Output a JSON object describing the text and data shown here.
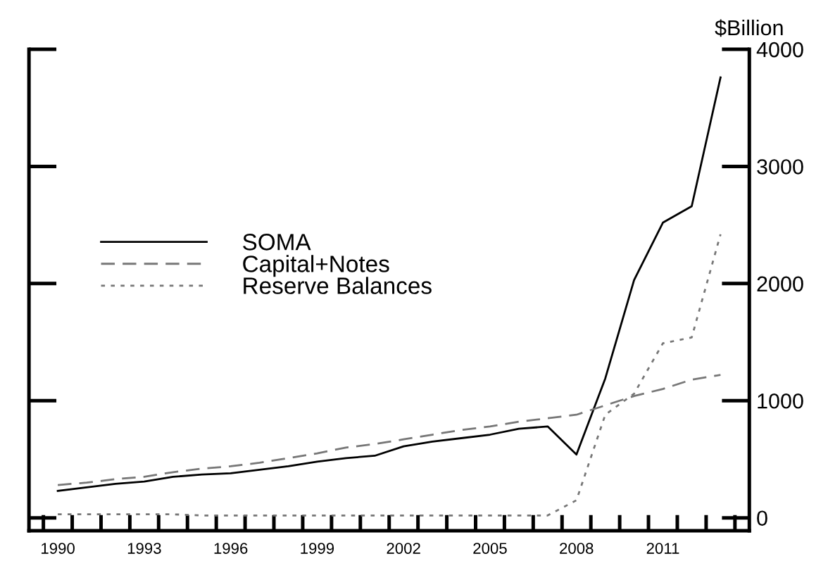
{
  "chart_data": {
    "type": "line",
    "ylabel": "$Billion",
    "x": [
      1990,
      1991,
      1992,
      1993,
      1994,
      1995,
      1996,
      1997,
      1998,
      1999,
      2000,
      2001,
      2002,
      2003,
      2004,
      2005,
      2006,
      2007,
      2008,
      2009,
      2010,
      2011,
      2012,
      2013
    ],
    "series": [
      {
        "name": "SOMA",
        "color": "#000000",
        "line_style": "solid",
        "values": [
          230,
          260,
          290,
          310,
          350,
          370,
          380,
          410,
          440,
          480,
          510,
          530,
          610,
          650,
          680,
          710,
          760,
          780,
          540,
          1190,
          2030,
          2520,
          2660,
          3760
        ]
      },
      {
        "name": "Capital+Notes",
        "color": "#777777",
        "line_style": "dashed",
        "values": [
          280,
          300,
          330,
          350,
          390,
          420,
          440,
          470,
          510,
          550,
          600,
          630,
          670,
          710,
          750,
          780,
          820,
          850,
          880,
          960,
          1040,
          1100,
          1180,
          1220
        ]
      },
      {
        "name": "Reserve Balances",
        "color": "#777777",
        "line_style": "dotted",
        "values": [
          30,
          30,
          30,
          30,
          30,
          20,
          20,
          20,
          20,
          20,
          20,
          20,
          20,
          20,
          20,
          20,
          20,
          20,
          150,
          880,
          1060,
          1490,
          1540,
          2420
        ]
      }
    ],
    "xlim": [
      1989,
      2014
    ],
    "xticks": [
      {
        "value": 1989.5,
        "label": null
      },
      {
        "value": 1990,
        "label": "1990"
      },
      {
        "value": 1990.5,
        "label": null
      },
      {
        "value": 1991.5,
        "label": null
      },
      {
        "value": 1992.5,
        "label": null
      },
      {
        "value": 1993,
        "label": "1993"
      },
      {
        "value": 1993.5,
        "label": null
      },
      {
        "value": 1994.5,
        "label": null
      },
      {
        "value": 1995.5,
        "label": null
      },
      {
        "value": 1996,
        "label": "1996"
      },
      {
        "value": 1996.5,
        "label": null
      },
      {
        "value": 1997.5,
        "label": null
      },
      {
        "value": 1998.5,
        "label": null
      },
      {
        "value": 1999,
        "label": "1999"
      },
      {
        "value": 1999.5,
        "label": null
      },
      {
        "value": 2000.5,
        "label": null
      },
      {
        "value": 2001.5,
        "label": null
      },
      {
        "value": 2002,
        "label": "2002"
      },
      {
        "value": 2002.5,
        "label": null
      },
      {
        "value": 2003.5,
        "label": null
      },
      {
        "value": 2004.5,
        "label": null
      },
      {
        "value": 2005,
        "label": "2005"
      },
      {
        "value": 2005.5,
        "label": null
      },
      {
        "value": 2006.5,
        "label": null
      },
      {
        "value": 2007.5,
        "label": null
      },
      {
        "value": 2008,
        "label": "2008"
      },
      {
        "value": 2008.5,
        "label": null
      },
      {
        "value": 2009.5,
        "label": null
      },
      {
        "value": 2010.5,
        "label": null
      },
      {
        "value": 2011,
        "label": "2011"
      },
      {
        "value": 2011.5,
        "label": null
      },
      {
        "value": 2012.5,
        "label": null
      },
      {
        "value": 2013.5,
        "label": null
      }
    ],
    "ylim": [
      -110,
      4000
    ],
    "yticks": [
      0,
      1000,
      2000,
      3000,
      4000
    ],
    "grid": false,
    "legend": "center",
    "tick_labels": "y2"
  }
}
